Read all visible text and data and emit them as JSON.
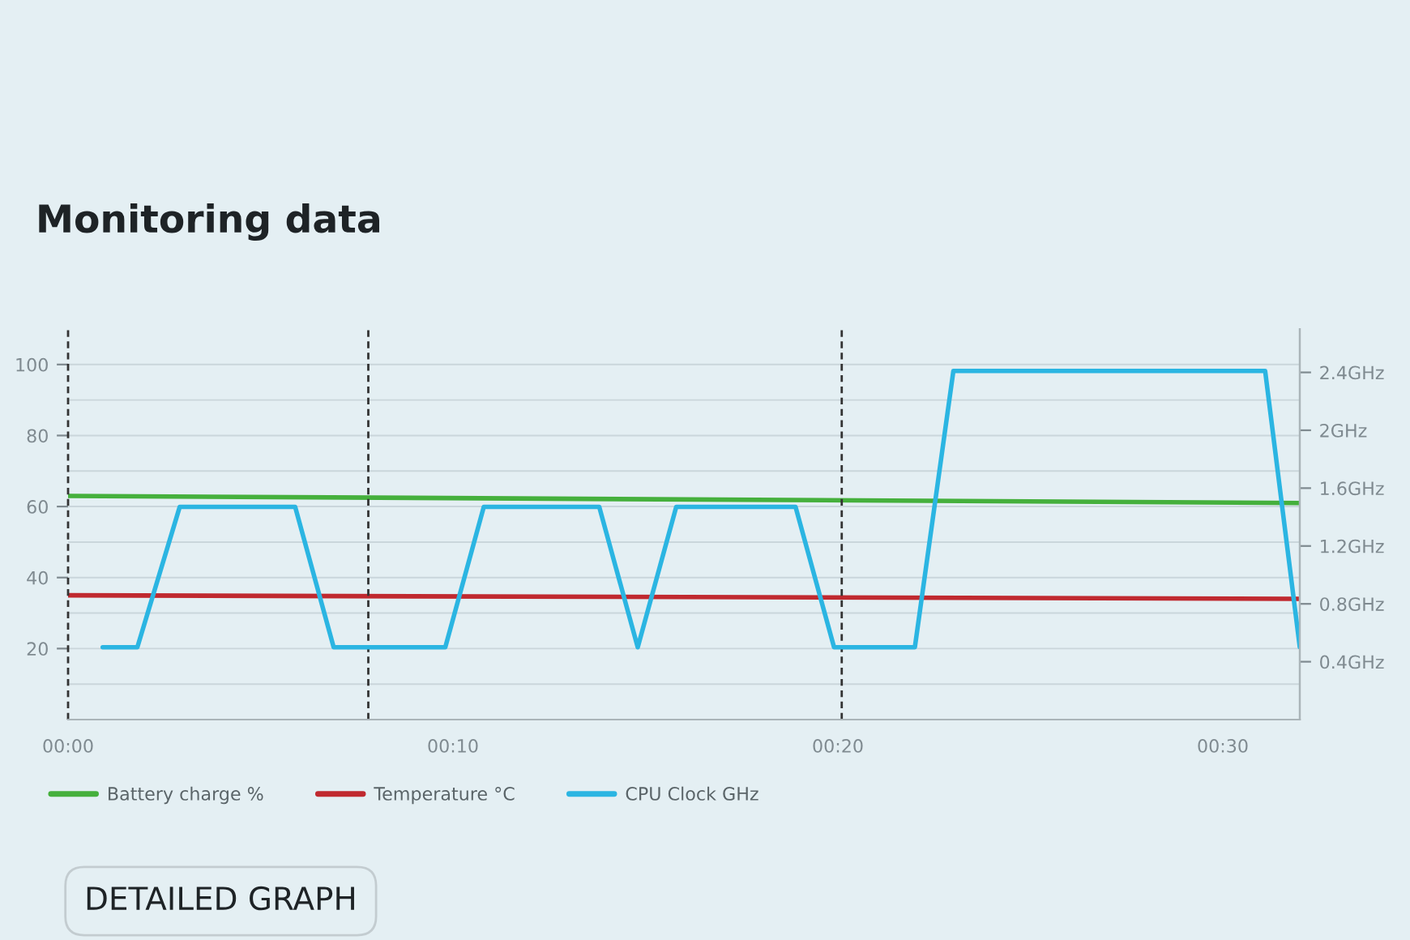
{
  "chart_data": {
    "type": "line",
    "title": "Monitoring data",
    "xlim": [
      0,
      32
    ],
    "xticks": [
      {
        "value": 0,
        "label": "00:00"
      },
      {
        "value": 10,
        "label": "00:10"
      },
      {
        "value": 20,
        "label": "00:20"
      },
      {
        "value": 30,
        "label": "00:30"
      }
    ],
    "ylim": [
      0,
      110
    ],
    "yticks": [
      {
        "value": 10,
        "label": null
      },
      20,
      {
        "value": 30,
        "label": null
      },
      40,
      {
        "value": 50,
        "label": null
      },
      60,
      {
        "value": 70,
        "label": null
      },
      80,
      {
        "value": 90,
        "label": null
      },
      100
    ],
    "y2lim": [
      0,
      2.7
    ],
    "y2ticks": [
      {
        "value": 0.4,
        "label": "0.4GHz"
      },
      {
        "value": 0.8,
        "label": "0.8GHz"
      },
      {
        "value": 1.2,
        "label": "1.2GHz"
      },
      {
        "value": 1.6,
        "label": "1.6GHz"
      },
      {
        "value": 2.0,
        "label": "2GHz"
      },
      {
        "value": 2.4,
        "label": "2.4GHz"
      }
    ],
    "grid": "y",
    "legend": "bottom",
    "series": [
      {
        "name": "Battery charge %",
        "color": "#45b03c",
        "x": [
          0,
          32
        ],
        "values": [
          63,
          61
        ]
      },
      {
        "name": "Temperature °C",
        "color": "#c0292f",
        "x": [
          0,
          32
        ],
        "values": [
          35,
          34
        ]
      },
      {
        "name": "CPU Clock GHz",
        "color": "#2bb5e2",
        "axis": "y2",
        "x": [
          0.9,
          1.8,
          2.9,
          5.9,
          6.9,
          9.8,
          10.8,
          13.8,
          14.8,
          15.8,
          18.9,
          19.9,
          22.0,
          23.0,
          31.1,
          32.0
        ],
        "values": [
          0.5,
          0.5,
          1.47,
          1.47,
          0.5,
          0.5,
          1.47,
          1.47,
          0.5,
          1.47,
          1.47,
          0.5,
          0.5,
          2.41,
          2.41,
          0.5
        ]
      }
    ],
    "ref_lines": [
      {
        "axis": "x",
        "value": 0,
        "color": "#333333",
        "line_style": "dashed"
      },
      {
        "axis": "x",
        "value": 7.8,
        "color": "#333333",
        "line_style": "dashed"
      },
      {
        "axis": "x",
        "value": 20.1,
        "color": "#333333",
        "line_style": "dashed"
      }
    ],
    "annotations": [
      "DETAILED GRAPH"
    ]
  }
}
